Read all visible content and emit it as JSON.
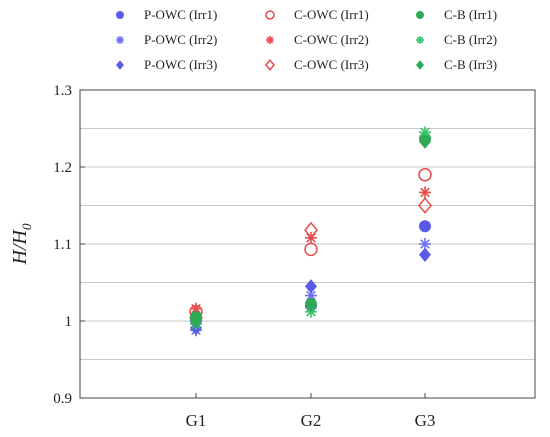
{
  "chart_data": {
    "type": "scatter",
    "categories": [
      "G1",
      "G2",
      "G3"
    ],
    "ylabel_main": "H/H",
    "ylabel_sub": "0",
    "ylim": [
      0.9,
      1.3
    ],
    "yticks": [
      0.9,
      1,
      1.1,
      1.2,
      1.3
    ],
    "ytick_labels": [
      "0.9",
      "1",
      "1.1",
      "1.2",
      "1.3"
    ],
    "grid": true,
    "legend_position": "top",
    "series": [
      {
        "name": "P-OWC (Irr1)",
        "color": "#5a5ae6",
        "marker": "filled-circle",
        "values": [
          1.001,
          1.02,
          1.123
        ]
      },
      {
        "name": "P-OWC (Irr2)",
        "color": "#6f6ff0",
        "marker": "asterisk",
        "values": [
          0.988,
          1.033,
          1.1
        ]
      },
      {
        "name": "P-OWC (Irr3)",
        "color": "#5a5ae6",
        "marker": "filled-diamond",
        "values": [
          0.991,
          1.045,
          1.086
        ]
      },
      {
        "name": "C-OWC (Irr1)",
        "color": "#e84a4a",
        "marker": "open-circle",
        "values": [
          1.012,
          1.093,
          1.19
        ]
      },
      {
        "name": "C-OWC (Irr2)",
        "color": "#e84a4a",
        "marker": "asterisk",
        "values": [
          1.016,
          1.108,
          1.167
        ]
      },
      {
        "name": "C-OWC (Irr3)",
        "color": "#e84a4a",
        "marker": "open-diamond",
        "values": [
          1.004,
          1.118,
          1.15
        ]
      },
      {
        "name": "C-B (Irr1)",
        "color": "#2eaa55",
        "marker": "filled-circle",
        "values": [
          1.005,
          1.022,
          1.237
        ]
      },
      {
        "name": "C-B (Irr2)",
        "color": "#3cc46a",
        "marker": "asterisk",
        "values": [
          0.996,
          1.012,
          1.245
        ]
      },
      {
        "name": "C-B (Irr3)",
        "color": "#2eaa55",
        "marker": "filled-diamond",
        "values": [
          1.0,
          1.021,
          1.233
        ]
      }
    ]
  }
}
